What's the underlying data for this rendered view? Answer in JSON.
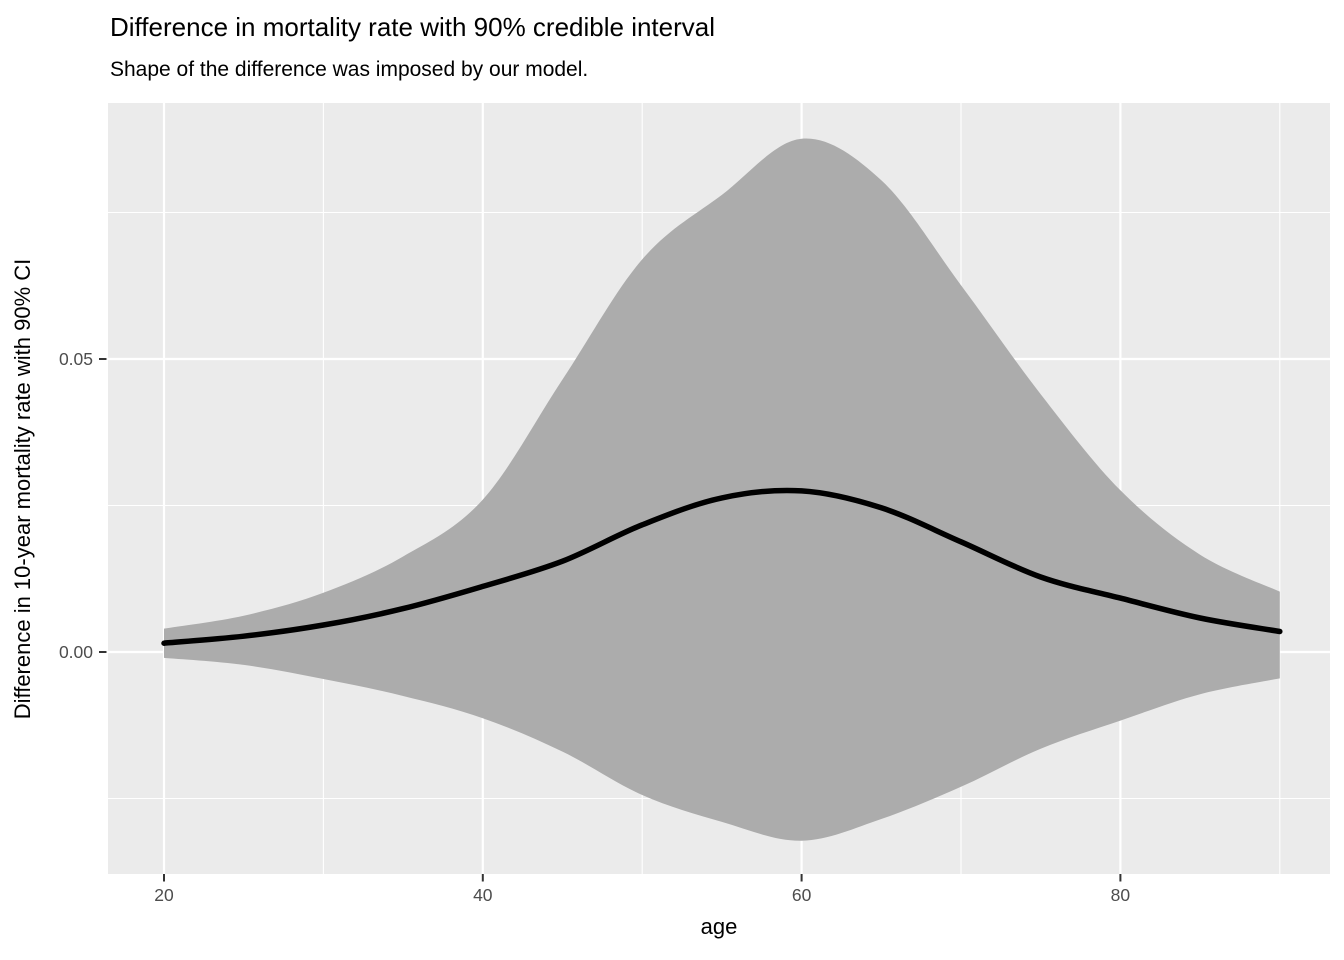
{
  "title": "Difference in mortality rate with 90% credible interval",
  "subtitle": "Shape of the difference was imposed by our model.",
  "colors": {
    "background": "#FFFFFF",
    "panel": "#EBEBEB",
    "grid": "#FFFFFF",
    "ribbon": "#ACACAC",
    "line": "#000000",
    "tick_mark": "#333333",
    "tick_text": "#4D4D4D",
    "title_text": "#000000"
  },
  "chart_data": {
    "type": "area",
    "title": "Difference in mortality rate with 90% credible interval",
    "subtitle": "Shape of the difference was imposed by our model.",
    "xlabel": "age",
    "ylabel": "Difference in 10-year mortality rate with 90% CI",
    "legend": "none",
    "grid": "white major and minor gridlines on gray panel",
    "xlim": [
      16.5,
      93.5
    ],
    "ylim": [
      -0.038,
      0.094
    ],
    "x_ticks": [
      20,
      40,
      60,
      80
    ],
    "x_tick_labels": [
      "20",
      "40",
      "60",
      "80"
    ],
    "x_minor_ticks": [
      30,
      50,
      70,
      90
    ],
    "y_ticks": [
      0,
      0.05
    ],
    "y_tick_labels": [
      "0.00",
      "0.05"
    ],
    "y_minor_ticks": [
      -0.025,
      0.025,
      0.075
    ],
    "x": [
      20,
      25,
      30,
      35,
      40,
      45,
      50,
      55,
      60,
      65,
      70,
      75,
      80,
      85,
      90
    ],
    "series": [
      {
        "name": "median difference",
        "style": "thick black line",
        "values": [
          0.0015,
          0.0027,
          0.0046,
          0.0074,
          0.0112,
          0.0155,
          0.0217,
          0.0263,
          0.0275,
          0.0246,
          0.0188,
          0.0128,
          0.0092,
          0.0058,
          0.0035
        ]
      },
      {
        "name": "90% CI lower bound",
        "style": "gray ribbon lower edge",
        "values": [
          -0.001,
          -0.0022,
          -0.0046,
          -0.0075,
          -0.0113,
          -0.017,
          -0.0244,
          -0.029,
          -0.0322,
          -0.0285,
          -0.023,
          -0.0165,
          -0.0117,
          -0.0072,
          -0.0045
        ]
      },
      {
        "name": "90% CI upper bound",
        "style": "gray ribbon upper edge",
        "values": [
          0.004,
          0.0062,
          0.0101,
          0.0163,
          0.026,
          0.0465,
          0.067,
          0.078,
          0.0876,
          0.0805,
          0.0626,
          0.044,
          0.0276,
          0.0166,
          0.0103
        ]
      }
    ]
  }
}
